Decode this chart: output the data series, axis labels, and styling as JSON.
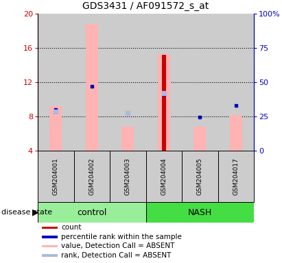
{
  "title": "GDS3431 / AF091572_s_at",
  "samples": [
    "GSM204001",
    "GSM204002",
    "GSM204003",
    "GSM204004",
    "GSM204005",
    "GSM204017"
  ],
  "groups": [
    "control",
    "control",
    "control",
    "NASH",
    "NASH",
    "NASH"
  ],
  "ylim_left": [
    4,
    20
  ],
  "ylim_right": [
    0,
    100
  ],
  "yticks_left": [
    4,
    8,
    12,
    16,
    20
  ],
  "yticks_right": [
    0,
    25,
    50,
    75,
    100
  ],
  "ytick_right_labels": [
    "0",
    "25",
    "50",
    "75",
    "100%"
  ],
  "pink_bar_values": [
    9.2,
    18.8,
    6.8,
    15.3,
    6.8,
    8.2
  ],
  "red_bar_values": [
    null,
    null,
    null,
    15.2,
    null,
    null
  ],
  "blue_square_values": [
    8.8,
    11.5,
    null,
    10.6,
    7.9,
    9.3
  ],
  "light_blue_values": [
    8.6,
    null,
    8.4,
    10.7,
    null,
    null
  ],
  "pink_color": "#FFB3B3",
  "light_blue_color": "#AABBDD",
  "red_color": "#CC0000",
  "blue_color": "#0000BB",
  "control_color": "#99EE99",
  "nash_color": "#44DD44",
  "bg_color": "#CCCCCC",
  "left_axis_color": "#CC0000",
  "right_axis_color": "#0000BB",
  "bar_bottom": 4,
  "bar_width": 0.35,
  "red_bar_width": 0.12,
  "legend_items": [
    [
      "#CC0000",
      "count"
    ],
    [
      "#0000BB",
      "percentile rank within the sample"
    ],
    [
      "#FFB3B3",
      "value, Detection Call = ABSENT"
    ],
    [
      "#AABBDD",
      "rank, Detection Call = ABSENT"
    ]
  ]
}
